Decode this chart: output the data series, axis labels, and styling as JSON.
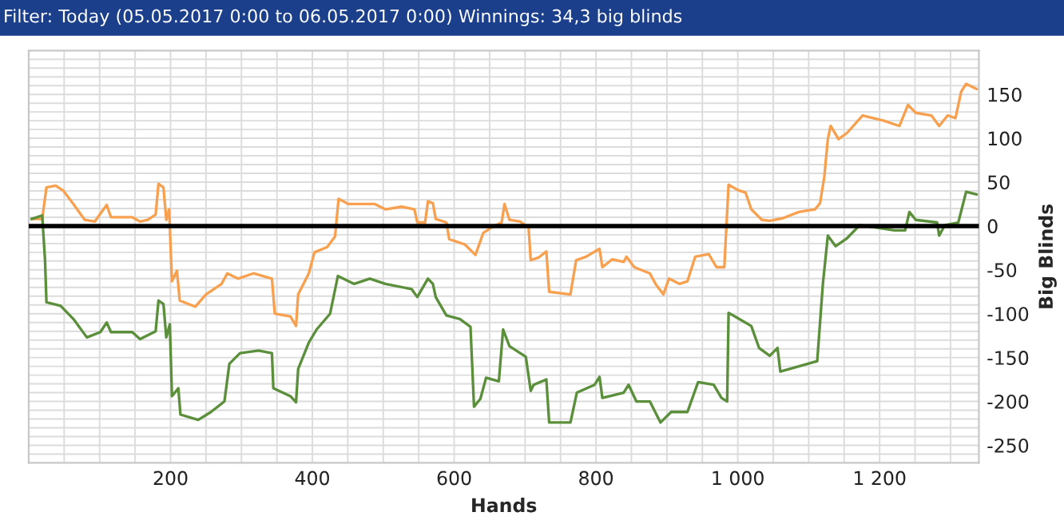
{
  "chart_data": {
    "type": "line",
    "title": "Filter: Today (05.05.2017 0:00 to 06.05.2017 0:00) Winnings: 34,3 big blinds",
    "xlabel": "Hands",
    "ylabel": "Big Blinds",
    "xlim": [
      0,
      1340
    ],
    "ylim": [
      -270,
      200
    ],
    "xticks": [
      {
        "value": 50,
        "label": null
      },
      {
        "value": 100,
        "label": null
      },
      {
        "value": 150,
        "label": null
      },
      200,
      {
        "value": 250,
        "label": null
      },
      {
        "value": 300,
        "label": null
      },
      {
        "value": 350,
        "label": null
      },
      400,
      {
        "value": 450,
        "label": null
      },
      {
        "value": 500,
        "label": null
      },
      {
        "value": 550,
        "label": null
      },
      600,
      {
        "value": 650,
        "label": null
      },
      {
        "value": 700,
        "label": null
      },
      {
        "value": 750,
        "label": null
      },
      800,
      {
        "value": 850,
        "label": null
      },
      {
        "value": 900,
        "label": null
      },
      {
        "value": 950,
        "label": null
      },
      {
        "value": 1000,
        "label": "1 000"
      },
      {
        "value": 1050,
        "label": null
      },
      {
        "value": 1100,
        "label": null
      },
      {
        "value": 1150,
        "label": null
      },
      {
        "value": 1200,
        "label": "1 200"
      },
      {
        "value": 1250,
        "label": null
      },
      {
        "value": 1300,
        "label": null
      }
    ],
    "yticks": [
      {
        "value": -260,
        "label": null
      },
      -250,
      {
        "value": -240,
        "label": null
      },
      {
        "value": -230,
        "label": null
      },
      {
        "value": -220,
        "label": null
      },
      {
        "value": -210,
        "label": null
      },
      -200,
      {
        "value": -190,
        "label": null
      },
      {
        "value": -180,
        "label": null
      },
      {
        "value": -170,
        "label": null
      },
      {
        "value": -160,
        "label": null
      },
      -150,
      {
        "value": -140,
        "label": null
      },
      {
        "value": -130,
        "label": null
      },
      {
        "value": -120,
        "label": null
      },
      {
        "value": -110,
        "label": null
      },
      -100,
      {
        "value": -90,
        "label": null
      },
      {
        "value": -80,
        "label": null
      },
      {
        "value": -70,
        "label": null
      },
      {
        "value": -60,
        "label": null
      },
      -50,
      {
        "value": -40,
        "label": null
      },
      {
        "value": -30,
        "label": null
      },
      {
        "value": -20,
        "label": null
      },
      {
        "value": -10,
        "label": null
      },
      0,
      {
        "value": 10,
        "label": null
      },
      {
        "value": 20,
        "label": null
      },
      {
        "value": 30,
        "label": null
      },
      {
        "value": 40,
        "label": null
      },
      50,
      {
        "value": 60,
        "label": null
      },
      {
        "value": 70,
        "label": null
      },
      {
        "value": 80,
        "label": null
      },
      {
        "value": 90,
        "label": null
      },
      100,
      {
        "value": 110,
        "label": null
      },
      {
        "value": 120,
        "label": null
      },
      {
        "value": 130,
        "label": null
      },
      {
        "value": 140,
        "label": null
      },
      150,
      {
        "value": 160,
        "label": null
      },
      {
        "value": 170,
        "label": null
      },
      {
        "value": 180,
        "label": null
      },
      {
        "value": 190,
        "label": null
      }
    ],
    "grid": true,
    "legend": false,
    "marker": "none",
    "line_style": "solid",
    "ref_lines": [
      {
        "axis": "y",
        "value": 0,
        "label": null,
        "color": "#000000"
      }
    ],
    "series": [
      {
        "color": "#f7a04f",
        "x": [
          4,
          19,
          25,
          38,
          49,
          63,
          79,
          93,
          110,
          116,
          146,
          157,
          168,
          179,
          183,
          190,
          194,
          198,
          202,
          209,
          213,
          235,
          250,
          272,
          280,
          295,
          317,
          343,
          347,
          369,
          377,
          380,
          395,
          403,
          421,
          432,
          437,
          451,
          466,
          488,
          503,
          526,
          544,
          548,
          559,
          563,
          570,
          574,
          589,
          593,
          615,
          630,
          641,
          652,
          667,
          671,
          678,
          693,
          705,
          708,
          719,
          730,
          734,
          764,
          772,
          786,
          805,
          809,
          823,
          839,
          843,
          854,
          876,
          884,
          895,
          903,
          918,
          929,
          940,
          959,
          970,
          981,
          987,
          1000,
          1011,
          1019,
          1034,
          1045,
          1064,
          1086,
          1109,
          1116,
          1122,
          1127,
          1131,
          1142,
          1154,
          1176,
          1206,
          1228,
          1240,
          1251,
          1273,
          1284,
          1296,
          1307,
          1315,
          1322,
          1337
        ],
        "values": [
          8,
          8,
          44,
          46,
          40,
          25,
          7,
          5,
          24,
          10,
          10,
          5,
          7,
          13,
          48,
          44,
          7,
          19,
          -63,
          -51,
          -85,
          -92,
          -78,
          -66,
          -54,
          -60,
          -54,
          -60,
          -100,
          -103,
          -114,
          -78,
          -54,
          -30,
          -24,
          -12,
          31,
          25,
          25,
          25,
          19,
          22,
          19,
          4,
          4,
          28,
          26,
          8,
          4,
          -15,
          -21,
          -33,
          -8,
          -2,
          4,
          25,
          7,
          5,
          -2,
          -39,
          -36,
          -29,
          -75,
          -78,
          -39,
          -35,
          -26,
          -47,
          -38,
          -41,
          -35,
          -47,
          -54,
          -66,
          -78,
          -60,
          -66,
          -63,
          -35,
          -32,
          -47,
          -47,
          47,
          41,
          38,
          19,
          7,
          6,
          9,
          16,
          19,
          26,
          56,
          99,
          114,
          99,
          106,
          126,
          120,
          114,
          138,
          129,
          126,
          114,
          126,
          123,
          153,
          162,
          156
        ]
      },
      {
        "color": "#5b8f3b",
        "x": [
          4,
          19,
          23,
          25,
          45,
          63,
          82,
          101,
          110,
          116,
          146,
          157,
          179,
          183,
          190,
          194,
          199,
          202,
          211,
          214,
          239,
          257,
          276,
          283,
          298,
          324,
          343,
          345,
          369,
          377,
          380,
          395,
          406,
          425,
          436,
          459,
          481,
          503,
          540,
          548,
          563,
          570,
          574,
          589,
          608,
          623,
          628,
          637,
          645,
          663,
          669,
          678,
          701,
          708,
          712,
          730,
          734,
          764,
          773,
          798,
          805,
          809,
          839,
          846,
          857,
          876,
          891,
          906,
          929,
          944,
          966,
          977,
          985,
          987,
          1000,
          1019,
          1030,
          1045,
          1056,
          1060,
          1086,
          1112,
          1120,
          1127,
          1138,
          1154,
          1172,
          1221,
          1236,
          1242,
          1251,
          1281,
          1284,
          1292,
          1311,
          1322,
          1337
        ],
        "values": [
          8,
          12,
          -39,
          -87,
          -91,
          -106,
          -127,
          -121,
          -110,
          -121,
          -121,
          -129,
          -120,
          -85,
          -89,
          -127,
          -112,
          -194,
          -185,
          -215,
          -221,
          -212,
          -200,
          -157,
          -145,
          -142,
          -145,
          -185,
          -194,
          -201,
          -163,
          -133,
          -118,
          -100,
          -57,
          -66,
          -60,
          -66,
          -72,
          -81,
          -60,
          -66,
          -81,
          -102,
          -106,
          -115,
          -206,
          -197,
          -173,
          -177,
          -118,
          -137,
          -149,
          -188,
          -181,
          -175,
          -224,
          -224,
          -190,
          -181,
          -172,
          -196,
          -190,
          -181,
          -200,
          -200,
          -224,
          -212,
          -212,
          -178,
          -181,
          -196,
          -200,
          -99,
          -105,
          -114,
          -139,
          -148,
          -139,
          -166,
          -160,
          -154,
          -66,
          -11,
          -23,
          -14,
          1,
          -5,
          -5,
          16,
          7,
          4,
          -11,
          1,
          4,
          39,
          36
        ]
      }
    ]
  }
}
